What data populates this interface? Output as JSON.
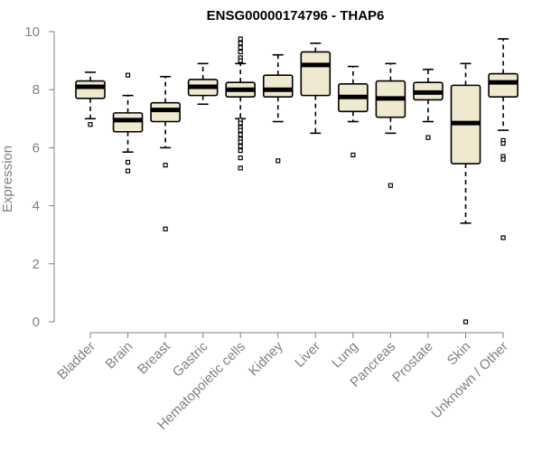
{
  "chart_data": {
    "type": "boxplot",
    "title": "ENSG00000174796 - THAP6",
    "xlabel": "",
    "ylabel": "Expression",
    "ylim": [
      0,
      10
    ],
    "yticks": [
      0,
      2,
      4,
      6,
      8,
      10
    ],
    "grid": false,
    "box_fill": "#efe9cf",
    "box_stroke": "#000000",
    "axis_color": "#808080",
    "categories": [
      "Bladder",
      "Brain",
      "Breast",
      "Gastric",
      "Hematopoietic cells",
      "Kidney",
      "Liver",
      "Lung",
      "Pancreas",
      "Prostate",
      "Skin",
      "Unknown / Other"
    ],
    "boxes": [
      {
        "q1": 7.7,
        "median": 8.1,
        "q3": 8.3,
        "whisker_low": 7.0,
        "whisker_high": 8.6,
        "outliers": [
          6.8
        ]
      },
      {
        "q1": 6.55,
        "median": 6.95,
        "q3": 7.2,
        "whisker_low": 5.85,
        "whisker_high": 7.8,
        "outliers": [
          8.5,
          5.5,
          5.2
        ]
      },
      {
        "q1": 6.9,
        "median": 7.3,
        "q3": 7.55,
        "whisker_low": 6.0,
        "whisker_high": 8.45,
        "outliers": [
          5.4,
          3.2
        ]
      },
      {
        "q1": 7.8,
        "median": 8.1,
        "q3": 8.35,
        "whisker_low": 7.5,
        "whisker_high": 8.9,
        "outliers": []
      },
      {
        "q1": 7.75,
        "median": 8.0,
        "q3": 8.25,
        "whisker_low": 7.0,
        "whisker_high": 8.9,
        "outliers": [
          9.75,
          9.6,
          9.45,
          9.3,
          9.1,
          9.0,
          6.95,
          6.85,
          6.7,
          6.6,
          6.45,
          6.3,
          6.2,
          6.05,
          5.9,
          5.65,
          5.3
        ]
      },
      {
        "q1": 7.75,
        "median": 8.0,
        "q3": 8.5,
        "whisker_low": 6.9,
        "whisker_high": 9.2,
        "outliers": [
          5.55
        ]
      },
      {
        "q1": 7.8,
        "median": 8.85,
        "q3": 9.3,
        "whisker_low": 6.5,
        "whisker_high": 9.6,
        "outliers": []
      },
      {
        "q1": 7.25,
        "median": 7.75,
        "q3": 8.2,
        "whisker_low": 6.9,
        "whisker_high": 8.8,
        "outliers": [
          5.75
        ]
      },
      {
        "q1": 7.05,
        "median": 7.7,
        "q3": 8.3,
        "whisker_low": 6.5,
        "whisker_high": 8.9,
        "outliers": [
          4.7
        ]
      },
      {
        "q1": 7.65,
        "median": 7.9,
        "q3": 8.25,
        "whisker_low": 6.9,
        "whisker_high": 8.7,
        "outliers": [
          6.35
        ]
      },
      {
        "q1": 5.45,
        "median": 6.85,
        "q3": 8.15,
        "whisker_low": 3.4,
        "whisker_high": 8.9,
        "outliers": [
          0.0
        ]
      },
      {
        "q1": 7.75,
        "median": 8.25,
        "q3": 8.55,
        "whisker_low": 6.6,
        "whisker_high": 9.75,
        "outliers": [
          6.25,
          6.15,
          5.7,
          5.6,
          2.9
        ]
      }
    ]
  }
}
